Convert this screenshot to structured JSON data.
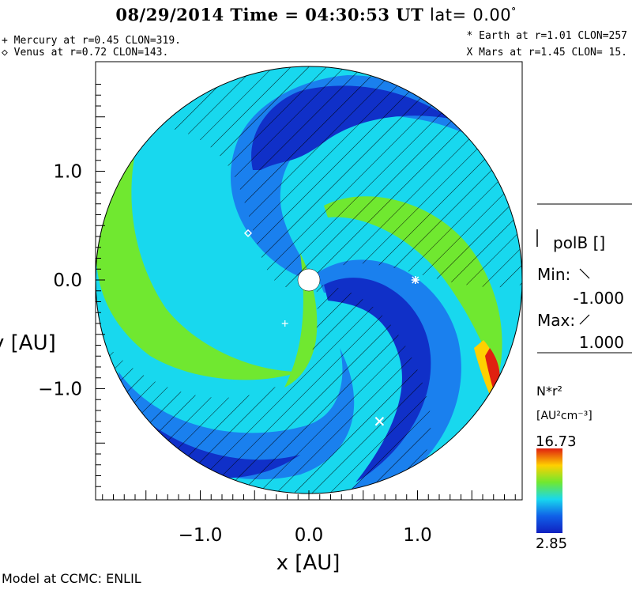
{
  "header": {
    "date": "08/29/2014",
    "time_label": "Time",
    "time_value": "04:30:53 UT",
    "lat_label": "lat=",
    "lat_value": "0.00",
    "lat_unit": "°"
  },
  "planets_left": [
    {
      "marker": "+",
      "text": "Mercury at r=0.45 CLON=319."
    },
    {
      "marker": "◇",
      "text": "Venus at r=0.72 CLON=143."
    }
  ],
  "planets_right": [
    {
      "marker": "*",
      "text": "Earth at  r=1.01 CLON=257"
    },
    {
      "marker": "X",
      "text": "Mars at r=1.45 CLON= 15."
    }
  ],
  "legend": {
    "polarity_title": "polB []",
    "min_label": "Min:",
    "min_value": "-1.000",
    "max_label": "Max:",
    "max_value": "1.000",
    "density_title": "N*r²",
    "density_unit": "[AU²cm⁻³]",
    "colorbar_max": "16.73",
    "colorbar_min": "2.85"
  },
  "credit": "Model at CCMC: ENLIL",
  "colors": {
    "low": "#1030c8",
    "mid_low": "#1a80ee",
    "mid": "#18d8ee",
    "mid_high": "#70e830",
    "high": "#ffd000",
    "max": "#e02010"
  },
  "chart_data": {
    "type": "heatmap",
    "title": "08/29/2014 Time = 04:30:53 UT lat= 0.00°",
    "xlabel": "x [AU]",
    "ylabel": "y [AU]",
    "xlim": [
      -1.9,
      1.95
    ],
    "ylim": [
      -1.9,
      1.9
    ],
    "x_ticks": [
      -1.0,
      0.0,
      1.0
    ],
    "y_ticks": [
      1.0,
      0.0,
      -1.0
    ],
    "x_tick_labels": [
      "−1.0",
      "0.0",
      "1.0"
    ],
    "y_tick_labels": [
      "1.0",
      "0.0",
      "−1.0"
    ],
    "colorbar": {
      "label": "N*r²",
      "unit": "[AU²cm⁻³]",
      "min": 2.85,
      "max": 16.73
    },
    "markers": [
      {
        "body": "Mercury",
        "symbol": "+",
        "x": -0.22,
        "y": -0.4
      },
      {
        "body": "Venus",
        "symbol": "◇",
        "x": -0.56,
        "y": 0.43
      },
      {
        "body": "Earth",
        "symbol": "*",
        "x": 0.98,
        "y": 0.0
      },
      {
        "body": "Mars",
        "symbol": "X",
        "x": 0.65,
        "y": -1.3
      }
    ]
  }
}
